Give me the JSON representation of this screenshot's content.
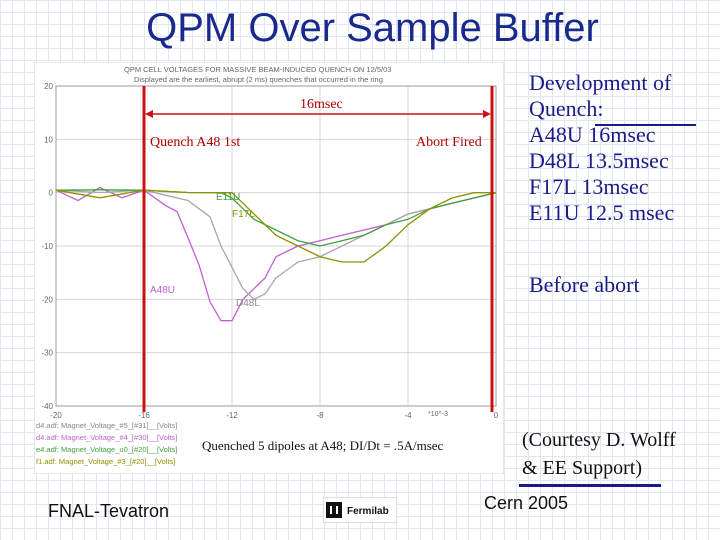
{
  "slide": {
    "title": "QPM Over Sample Buffer",
    "bullets": [
      "Development of",
      "Quench:",
      "A48U 16msec",
      "D48L 13.5msec",
      "F17L  13msec",
      "E11U  12.5 msec"
    ],
    "before_abort": "Before abort",
    "courtesy": [
      "(Courtesy D. Wolff",
      "& EE Support)"
    ],
    "footer_left": "FNAL-Tevatron",
    "footer_right": "Cern 2005",
    "logo_text": "Fermilab"
  },
  "plot": {
    "header_line1": "QPM CELL VOLTAGES FOR MASSIVE BEAM-INDUCED QUENCH ON 12/5/03",
    "header_line2": "Displayed are the earliest, abrupt (2 ms) quenches that occurred in the ring",
    "annotation_16ms": "16msec",
    "annotation_quench": "Quench A48 1st",
    "annotation_abort": "Abort Fired",
    "caption": "Quenched 5 dipoles at A48; DI/Dt = .5A/msec",
    "label_e11u": "E11U",
    "label_f17l": "F17L",
    "label_a48u": "A48U",
    "label_d48l": "D48L",
    "xunit": "*10^-3",
    "legend": [
      "d4.adf: Magnet_Voltage_#5_[#31]__[Volts]",
      "d4.adf: Magnet_Voltage_#4_[#30]__[Volts]",
      "e4.adf: Magnet_Voltage_u0_[#20]__[Volts]",
      "f1.adf: Magnet_Voltage_#3_[#20]__[Volts]"
    ]
  },
  "chart_data": {
    "type": "line",
    "xlim": [
      -20,
      0
    ],
    "ylim": [
      -40,
      20
    ],
    "xticks": [
      "-20",
      "-16",
      "-12",
      "-8",
      "-4",
      "0"
    ],
    "yticks": [
      "20",
      "10",
      "0",
      "-10",
      "-20",
      "-30",
      "-40"
    ],
    "grid": true,
    "markers": {
      "quench_start_x": -16,
      "abort_x": 0
    },
    "colors": {
      "a48u": "#c060d0",
      "d48l": "#a8a8a8",
      "e11u": "#40a040",
      "f17l": "#909000",
      "marker": "#cc1111"
    },
    "series": [
      {
        "name": "A48U",
        "color_key": "a48u",
        "x": [
          -20,
          -19,
          -18,
          -17,
          -16,
          -15,
          -14.5,
          -14,
          -13.5,
          -13,
          -12.5,
          -12,
          -11.5,
          -11,
          -10.5,
          -10,
          -9,
          -8,
          -7,
          -6,
          -5,
          -4,
          -3,
          -2,
          -1,
          0
        ],
        "y": [
          0,
          -1,
          0.5,
          -0.5,
          0,
          -2,
          -4,
          -8,
          -14,
          -20,
          -24,
          -24,
          -20,
          -18,
          -16,
          -12,
          -10,
          -9,
          -8,
          -7,
          -6,
          -4,
          -3,
          -2,
          -1,
          0
        ]
      },
      {
        "name": "D48L",
        "color_key": "d48l",
        "x": [
          -20,
          -18,
          -16,
          -14,
          -13,
          -12.5,
          -12,
          -11.5,
          -11,
          -10.5,
          -10,
          -9,
          -8,
          -7,
          -6,
          -5,
          -4,
          -3,
          -2,
          -1,
          0
        ],
        "y": [
          0,
          0.5,
          0,
          -1,
          -5,
          -10,
          -14,
          -18,
          -20,
          -19,
          -16,
          -13,
          -12,
          -10,
          -8,
          -6,
          -4,
          -3,
          -2,
          -1,
          0
        ]
      },
      {
        "name": "E11U",
        "color_key": "e11u",
        "x": [
          -20,
          -18,
          -16,
          -14,
          -12.5,
          -12,
          -11.5,
          -11,
          -10,
          -9,
          -8,
          -7,
          -6,
          -5,
          -4,
          -3,
          -2,
          -1,
          0
        ],
        "y": [
          0,
          1,
          0,
          0.5,
          0,
          -1,
          -3,
          -5,
          -7,
          -9,
          -10,
          -9,
          -8,
          -6,
          -5,
          -3,
          -2,
          -1,
          0
        ]
      },
      {
        "name": "F17L",
        "color_key": "f17l",
        "x": [
          -20,
          -18,
          -16,
          -14,
          -12,
          -11.5,
          -11,
          -10,
          -9,
          -8,
          -7,
          -6,
          -5,
          -4,
          -3,
          -2,
          -1,
          0
        ],
        "y": [
          0,
          -0.5,
          0,
          0.5,
          0,
          -2,
          -4,
          -8,
          -10,
          -12,
          -13,
          -13,
          -10,
          -6,
          -3,
          -1,
          0,
          0
        ]
      }
    ]
  }
}
